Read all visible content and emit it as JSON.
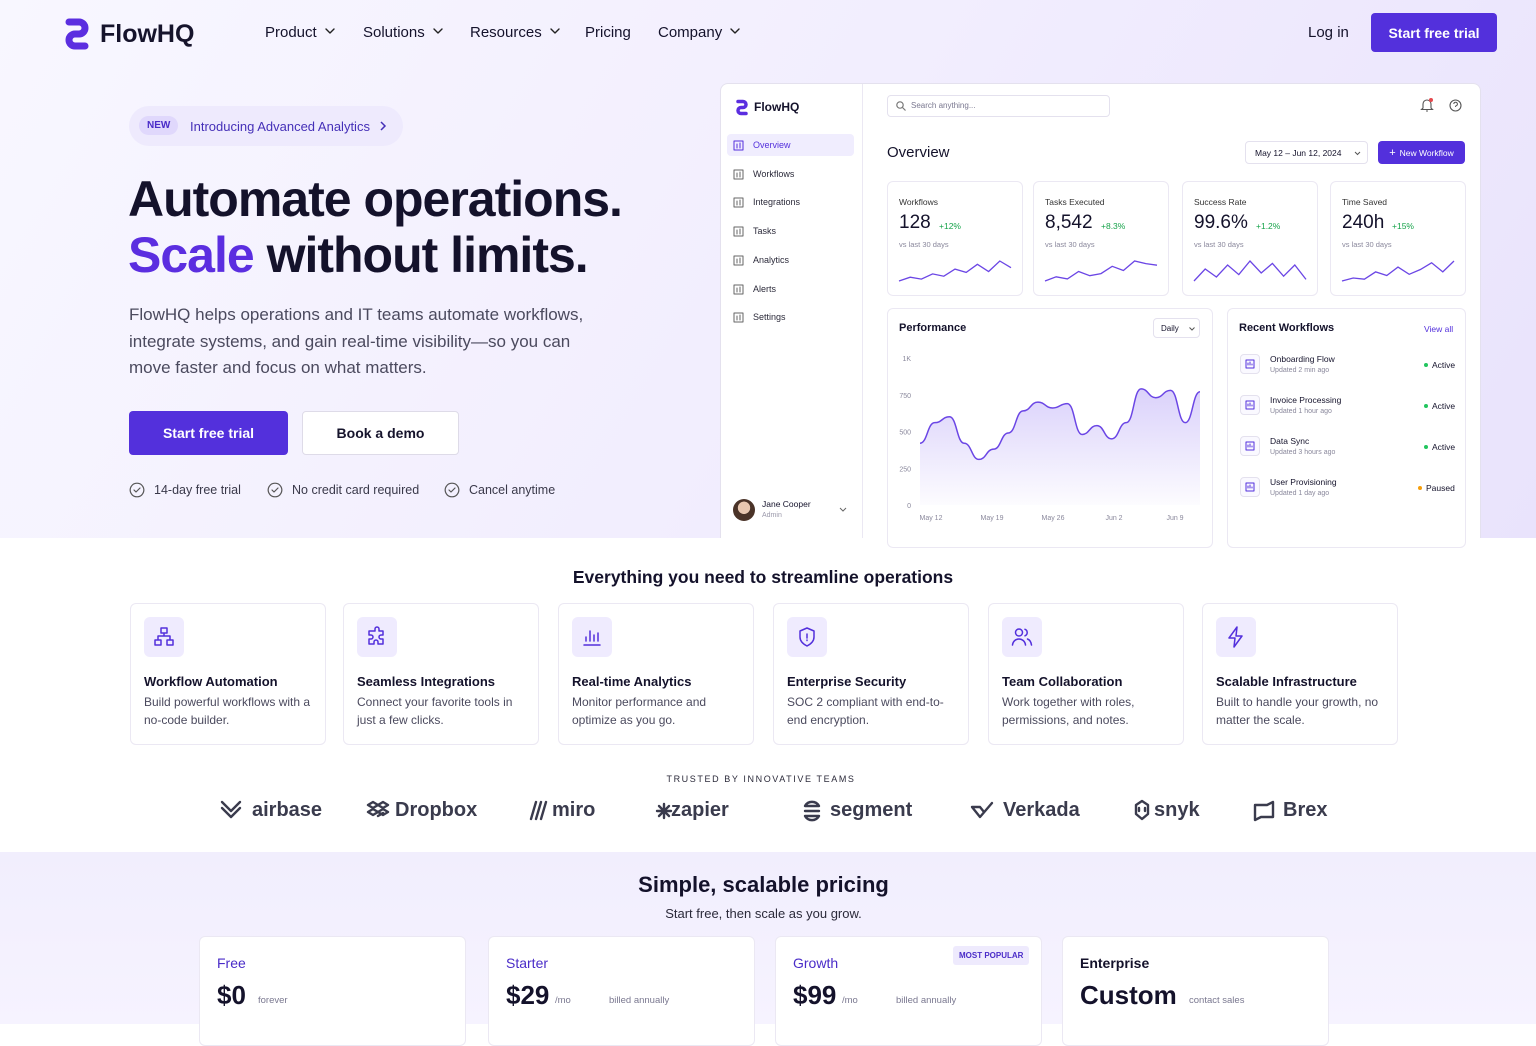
{
  "nav": {
    "brand": "FlowHQ",
    "links": [
      "Product",
      "Solutions",
      "Resources",
      "Pricing",
      "Company"
    ],
    "login": "Log in",
    "cta": "Start free trial"
  },
  "hero": {
    "badge_tag": "NEW",
    "badge_text": "Introducing Advanced Analytics",
    "title_line1": "Automate operations.",
    "title_highlight": "Scale",
    "title_rest": "without limits.",
    "description": "FlowHQ helps operations and IT teams automate workflows, integrate systems, and gain real-time visibility—so you can move faster and focus on what matters.",
    "primary_button": "Start free trial",
    "secondary_button": "Book a demo",
    "checks": [
      "14-day free trial",
      "No credit card required",
      "Cancel anytime"
    ]
  },
  "dashboard": {
    "brand": "FlowHQ",
    "menu": [
      "Overview",
      "Workflows",
      "Integrations",
      "Tasks",
      "Analytics",
      "Alerts",
      "Settings"
    ],
    "user_name": "Jane Cooper",
    "user_role": "Admin",
    "search_placeholder": "Search anything...",
    "heading": "Overview",
    "date_range": "May 12 – Jun 12, 2024",
    "new_button": "New Workflow",
    "stats": [
      {
        "label": "Workflows",
        "value": "128",
        "delta": "+12%",
        "note": "vs last 30 days",
        "trend": [
          20,
          28,
          24,
          35,
          30,
          45,
          38,
          55,
          40,
          62,
          48
        ]
      },
      {
        "label": "Tasks Executed",
        "value": "8,542",
        "delta": "+8.3%",
        "note": "vs last 30 days",
        "trend": [
          22,
          30,
          26,
          40,
          32,
          36,
          50,
          42,
          60,
          55,
          52
        ]
      },
      {
        "label": "Success Rate",
        "value": "99.6%",
        "delta": "+1.2%",
        "note": "vs last 30 days",
        "trend": [
          30,
          45,
          35,
          50,
          38,
          55,
          40,
          52,
          36,
          50,
          32
        ]
      },
      {
        "label": "Time Saved",
        "value": "240h",
        "delta": "+15%",
        "note": "vs last 30 days",
        "trend": [
          25,
          30,
          28,
          40,
          34,
          48,
          36,
          44,
          55,
          40,
          58
        ]
      }
    ],
    "performance": {
      "title": "Performance",
      "period": "Daily",
      "ylim": [
        0,
        1000
      ],
      "yticks": [
        {
          "value": 1000,
          "label": "1K"
        },
        750,
        500,
        250,
        0
      ],
      "xlabels": [
        "May 12",
        "May 19",
        "May 26",
        "Jun 2",
        "Jun 9"
      ],
      "values": [
        420,
        560,
        600,
        420,
        310,
        380,
        490,
        640,
        700,
        660,
        690,
        480,
        540,
        450,
        560,
        790,
        730,
        780,
        560,
        770
      ]
    },
    "recent": {
      "title": "Recent Workflows",
      "link": "View all",
      "items": [
        {
          "name": "Onboarding Flow",
          "updated": "Updated 2 min ago",
          "status": "Active"
        },
        {
          "name": "Invoice Processing",
          "updated": "Updated 1 hour ago",
          "status": "Active"
        },
        {
          "name": "Data Sync",
          "updated": "Updated 3 hours ago",
          "status": "Active"
        },
        {
          "name": "User Provisioning",
          "updated": "Updated 1 day ago",
          "status": "Paused"
        }
      ]
    }
  },
  "features": {
    "heading": "Everything you need to streamline operations",
    "items": [
      {
        "title": "Workflow Automation",
        "description": "Build powerful workflows with a no-code builder."
      },
      {
        "title": "Seamless Integrations",
        "description": "Connect your favorite tools in just a few clicks."
      },
      {
        "title": "Real-time Analytics",
        "description": "Monitor performance and optimize as you go."
      },
      {
        "title": "Enterprise Security",
        "description": "SOC 2 compliant with end-to-end encryption."
      },
      {
        "title": "Team Collaboration",
        "description": "Work together with roles, permissions, and notes."
      },
      {
        "title": "Scalable Infrastructure",
        "description": "Built to handle your growth, no matter the scale."
      }
    ]
  },
  "trusted": {
    "label": "TRUSTED BY INNOVATIVE TEAMS",
    "logos": [
      "airbase",
      "Dropbox",
      "miro",
      "zapier",
      "segment",
      "Verkada",
      "snyk",
      "Brex"
    ]
  },
  "pricing": {
    "heading": "Simple, scalable pricing",
    "subheading": "Start free, then scale as you grow.",
    "plans": [
      {
        "name": "Free",
        "price": "$0",
        "period": "forever"
      },
      {
        "name": "Starter",
        "price": "$29",
        "period": "/mo",
        "billing": "billed annually"
      },
      {
        "name": "Growth",
        "price": "$99",
        "period": "/mo",
        "billing": "billed annually",
        "badge": "MOST POPULAR"
      },
      {
        "name": "Enterprise",
        "price": "Custom",
        "period": "contact sales"
      }
    ]
  }
}
